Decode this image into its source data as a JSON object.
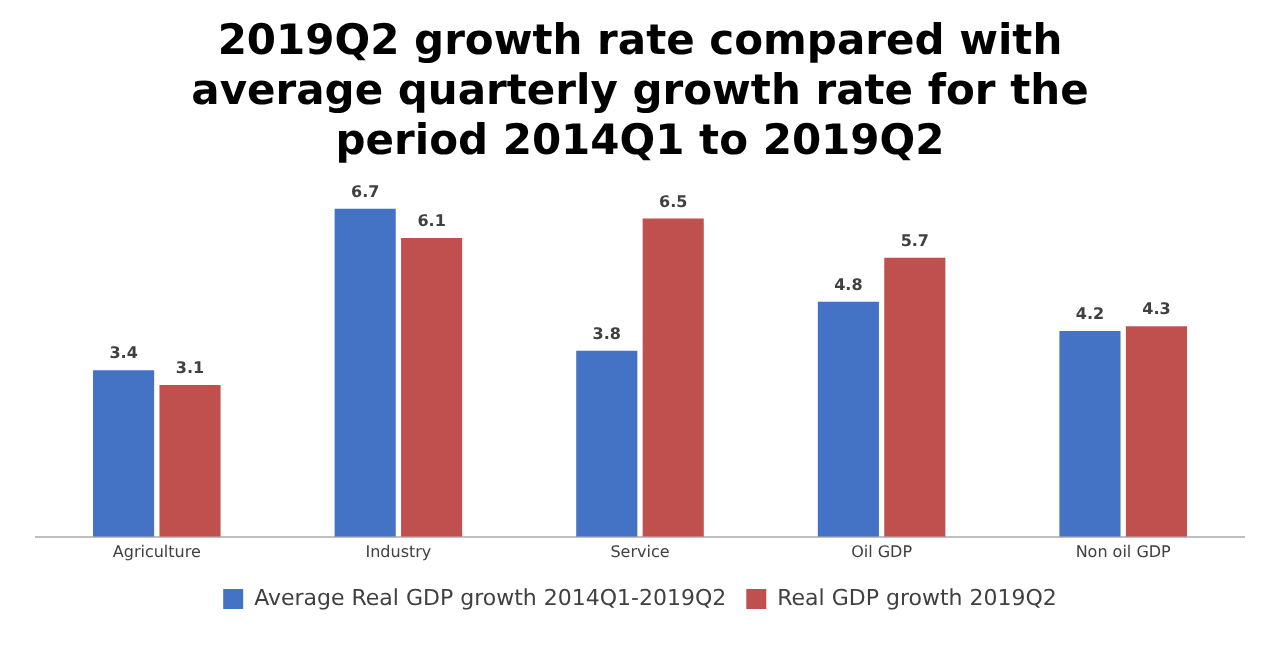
{
  "chart_data": {
    "type": "bar",
    "title": "2019Q2 growth rate compared with average quarterly growth rate for the period 2014Q1 to 2019Q2",
    "categories": [
      "Agriculture",
      "Industry",
      "Service",
      "Oil GDP",
      "Non oil GDP"
    ],
    "series": [
      {
        "name": "Average Real GDP growth 2014Q1-2019Q2",
        "color": "#4472c4",
        "values": [
          3.4,
          6.7,
          3.8,
          4.8,
          4.2
        ]
      },
      {
        "name": "Real GDP growth 2019Q2",
        "color": "#c0504d",
        "values": [
          3.1,
          6.1,
          6.5,
          5.7,
          4.3
        ]
      }
    ],
    "data_labels": true,
    "legend": "bottom",
    "grid": false,
    "tick_labels": "x"
  }
}
